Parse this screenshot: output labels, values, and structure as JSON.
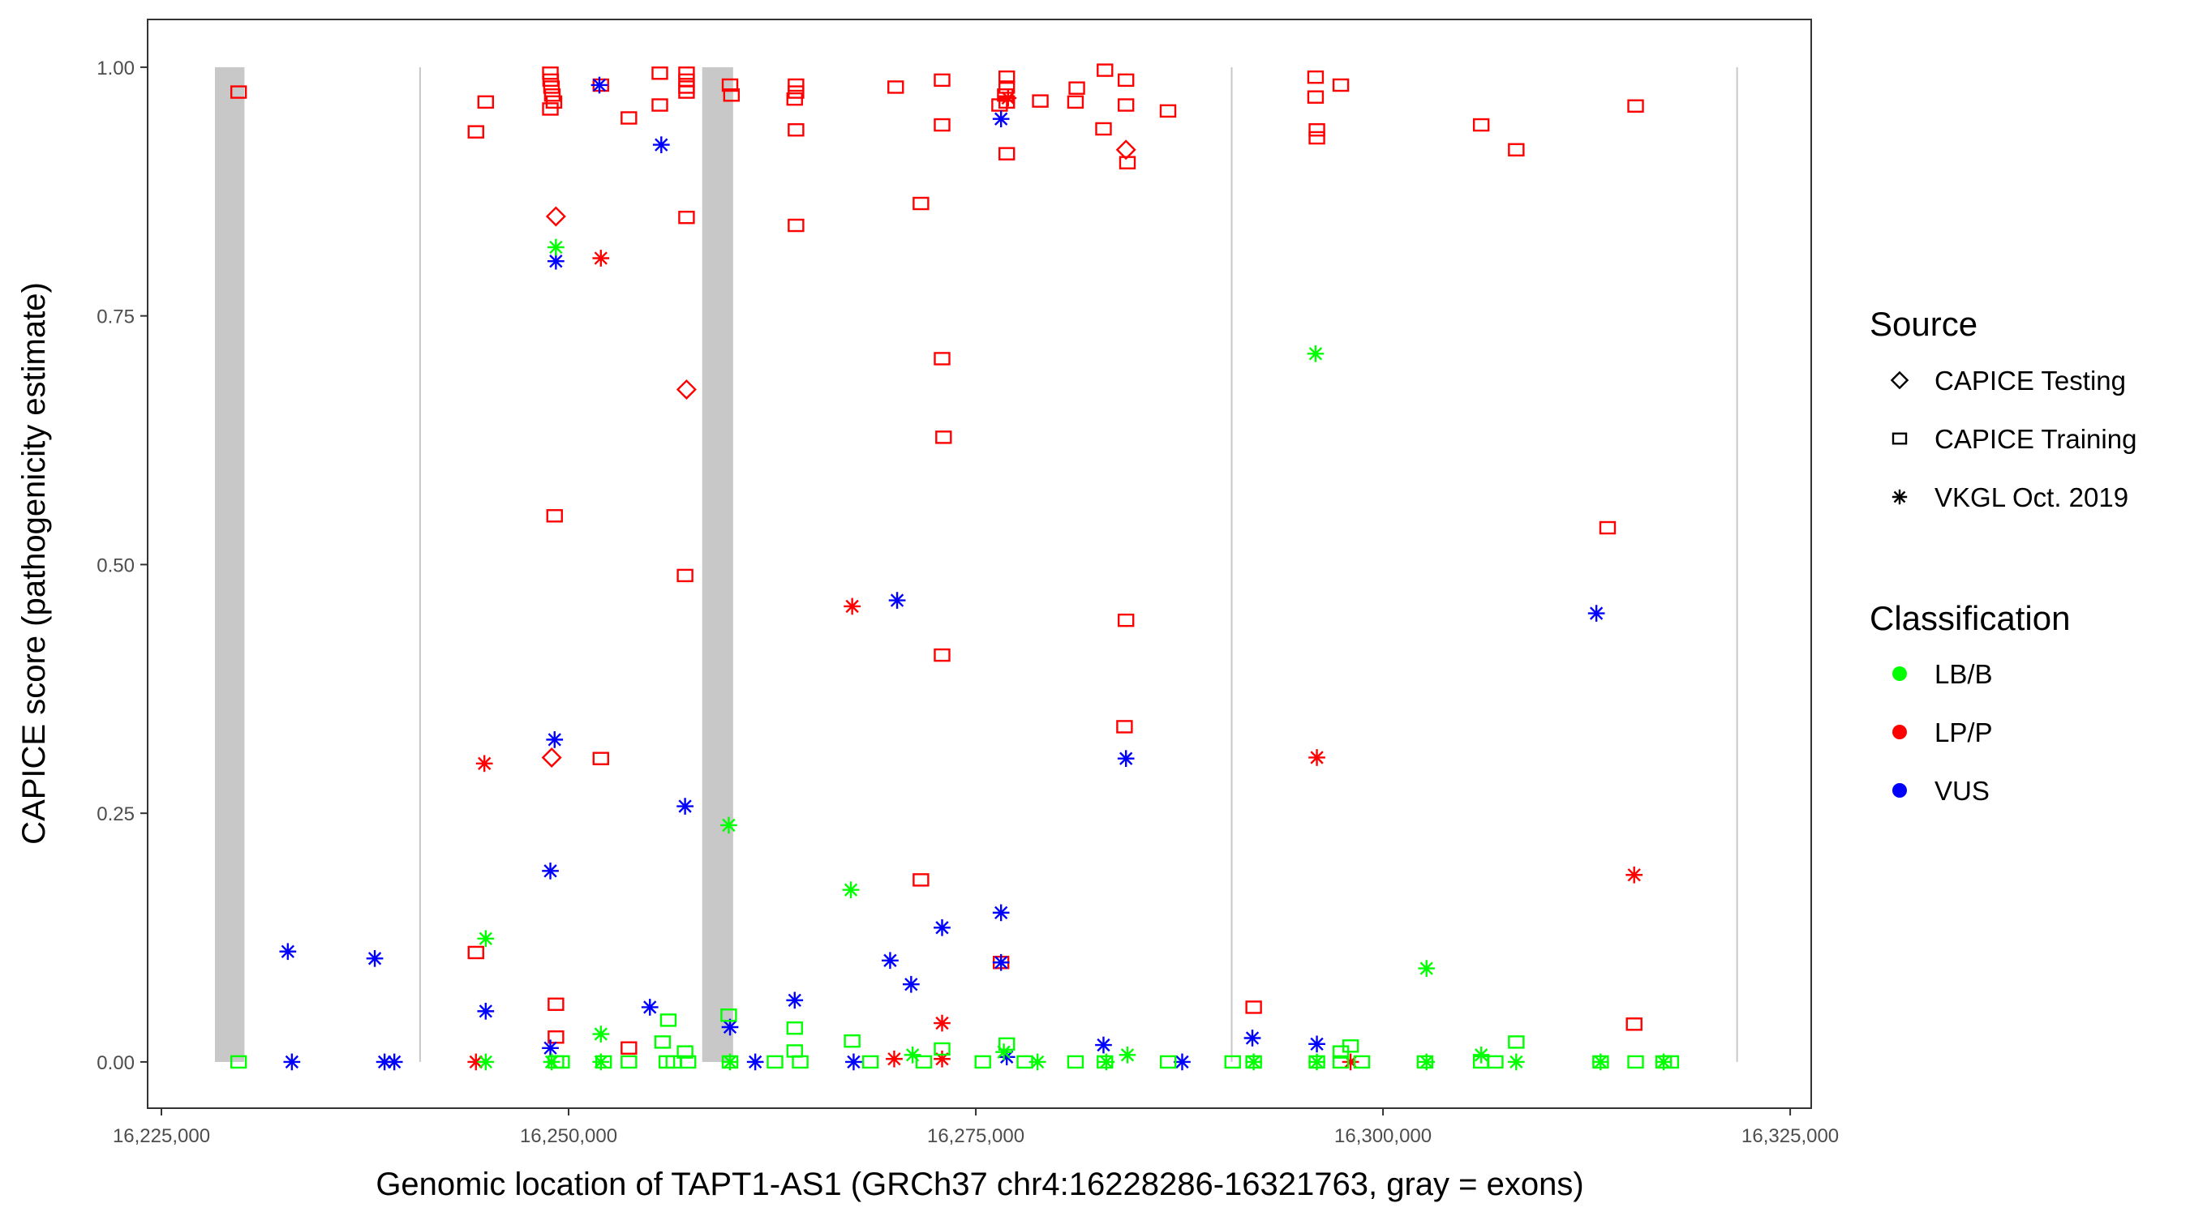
{
  "chart_data": {
    "type": "scatter",
    "title": "",
    "xlabel": "Genomic location of TAPT1-AS1 (GRCh37 chr4:16228286-16321763, gray = exons)",
    "ylabel": "CAPICE score (pathogenicity estimate)",
    "xlim": [
      16224153,
      16326290
    ],
    "ylim": [
      -0.0465,
      1.048
    ],
    "grid": false,
    "x_ticks": [
      16225000,
      16250000,
      16275000,
      16300000,
      16325000
    ],
    "x_tick_labels": [
      "16,225,000",
      "16,250,000",
      "16,275,000",
      "16,300,000",
      "16,325,000"
    ],
    "y_ticks": [
      0,
      0.25,
      0.5,
      0.75,
      1.0
    ],
    "y_tick_labels": [
      "0.00",
      "0.25",
      "0.50",
      "0.75",
      "1.00"
    ],
    "exons": [
      [
        16228286,
        16230100
      ],
      [
        16240830,
        16240900
      ],
      [
        16258200,
        16260100
      ],
      [
        16290660,
        16290730
      ],
      [
        16321690,
        16321763
      ]
    ],
    "exon_color": "#c8c8c8",
    "legend_placement": "right",
    "legend": {
      "source_title": "Source",
      "sources": [
        {
          "label": "CAPICE Testing",
          "shape": "diamond"
        },
        {
          "label": "CAPICE Training",
          "shape": "square"
        },
        {
          "label": "VKGL Oct. 2019",
          "shape": "asterisk"
        }
      ],
      "class_title": "Classification",
      "classes": [
        {
          "label": "LB/B",
          "color": "#00FF00"
        },
        {
          "label": "LP/P",
          "color": "#FF0000"
        },
        {
          "label": "VUS",
          "color": "#0000FF"
        }
      ]
    },
    "columns": [
      "position",
      "score",
      "classification",
      "source"
    ],
    "points": [
      [
        16229740,
        0.975,
        "LP/P",
        "CAPICE Training"
      ],
      [
        16244310,
        0.935,
        "LP/P",
        "CAPICE Training"
      ],
      [
        16244910,
        0.965,
        "LP/P",
        "CAPICE Training"
      ],
      [
        16248880,
        0.994,
        "LP/P",
        "CAPICE Training"
      ],
      [
        16248900,
        0.987,
        "LP/P",
        "CAPICE Training"
      ],
      [
        16248950,
        0.98,
        "LP/P",
        "CAPICE Training"
      ],
      [
        16249000,
        0.972,
        "LP/P",
        "CAPICE Training"
      ],
      [
        16249100,
        0.965,
        "LP/P",
        "CAPICE Training"
      ],
      [
        16248880,
        0.958,
        "LP/P",
        "CAPICE Training"
      ],
      [
        16251980,
        0.982,
        "LP/P",
        "CAPICE Training"
      ],
      [
        16253700,
        0.949,
        "LP/P",
        "CAPICE Training"
      ],
      [
        16255600,
        0.994,
        "LP/P",
        "CAPICE Training"
      ],
      [
        16255600,
        0.962,
        "LP/P",
        "CAPICE Training"
      ],
      [
        16257240,
        0.994,
        "LP/P",
        "CAPICE Training"
      ],
      [
        16257240,
        0.987,
        "LP/P",
        "CAPICE Training"
      ],
      [
        16257240,
        0.98,
        "LP/P",
        "CAPICE Training"
      ],
      [
        16257240,
        0.975,
        "LP/P",
        "CAPICE Training"
      ],
      [
        16257240,
        0.849,
        "LP/P",
        "CAPICE Training"
      ],
      [
        16257150,
        0.489,
        "LP/P",
        "CAPICE Training"
      ],
      [
        16259910,
        0.982,
        "LP/P",
        "CAPICE Training"
      ],
      [
        16260000,
        0.972,
        "LP/P",
        "CAPICE Training"
      ],
      [
        16263960,
        0.982,
        "LP/P",
        "CAPICE Training"
      ],
      [
        16263960,
        0.975,
        "LP/P",
        "CAPICE Training"
      ],
      [
        16263880,
        0.968,
        "LP/P",
        "CAPICE Training"
      ],
      [
        16263960,
        0.937,
        "LP/P",
        "CAPICE Training"
      ],
      [
        16263960,
        0.841,
        "LP/P",
        "CAPICE Training"
      ],
      [
        16270080,
        0.98,
        "LP/P",
        "CAPICE Training"
      ],
      [
        16271630,
        0.863,
        "LP/P",
        "CAPICE Training"
      ],
      [
        16272930,
        0.987,
        "LP/P",
        "CAPICE Training"
      ],
      [
        16272930,
        0.942,
        "LP/P",
        "CAPICE Training"
      ],
      [
        16272930,
        0.707,
        "LP/P",
        "CAPICE Training"
      ],
      [
        16273020,
        0.628,
        "LP/P",
        "CAPICE Training"
      ],
      [
        16272930,
        0.409,
        "LP/P",
        "CAPICE Training"
      ],
      [
        16276900,
        0.99,
        "LP/P",
        "CAPICE Training"
      ],
      [
        16276900,
        0.98,
        "LP/P",
        "CAPICE Training"
      ],
      [
        16276810,
        0.972,
        "LP/P",
        "CAPICE Training"
      ],
      [
        16276900,
        0.965,
        "LP/P",
        "CAPICE Training"
      ],
      [
        16276460,
        0.962,
        "LP/P",
        "CAPICE Training"
      ],
      [
        16276900,
        0.913,
        "LP/P",
        "CAPICE Training"
      ],
      [
        16278960,
        0.966,
        "LP/P",
        "CAPICE Training"
      ],
      [
        16281200,
        0.979,
        "LP/P",
        "CAPICE Training"
      ],
      [
        16281120,
        0.965,
        "LP/P",
        "CAPICE Training"
      ],
      [
        16282930,
        0.997,
        "LP/P",
        "CAPICE Training"
      ],
      [
        16282840,
        0.938,
        "LP/P",
        "CAPICE Training"
      ],
      [
        16284220,
        0.987,
        "LP/P",
        "CAPICE Training"
      ],
      [
        16284220,
        0.962,
        "LP/P",
        "CAPICE Training"
      ],
      [
        16284310,
        0.904,
        "LP/P",
        "CAPICE Training"
      ],
      [
        16284220,
        0.444,
        "LP/P",
        "CAPICE Training"
      ],
      [
        16284130,
        0.337,
        "LP/P",
        "CAPICE Training"
      ],
      [
        16286800,
        0.956,
        "LP/P",
        "CAPICE Training"
      ],
      [
        16295860,
        0.99,
        "LP/P",
        "CAPICE Training"
      ],
      [
        16295860,
        0.97,
        "LP/P",
        "CAPICE Training"
      ],
      [
        16295940,
        0.937,
        "LP/P",
        "CAPICE Training"
      ],
      [
        16295940,
        0.929,
        "LP/P",
        "CAPICE Training"
      ],
      [
        16297410,
        0.982,
        "LP/P",
        "CAPICE Training"
      ],
      [
        16306030,
        0.942,
        "LP/P",
        "CAPICE Training"
      ],
      [
        16308180,
        0.917,
        "LP/P",
        "CAPICE Training"
      ],
      [
        16315510,
        0.961,
        "LP/P",
        "CAPICE Training"
      ],
      [
        16313790,
        0.537,
        "LP/P",
        "CAPICE Training"
      ],
      [
        16315420,
        0.038,
        "LP/P",
        "CAPICE Training"
      ],
      [
        16292060,
        0.055,
        "LP/P",
        "CAPICE Training"
      ],
      [
        16271630,
        0.183,
        "LP/P",
        "CAPICE Training"
      ],
      [
        16276550,
        0.1,
        "LP/P",
        "CAPICE Training"
      ],
      [
        16249140,
        0.549,
        "LP/P",
        "CAPICE Training"
      ],
      [
        16251980,
        0.305,
        "LP/P",
        "CAPICE Training"
      ],
      [
        16244310,
        0.11,
        "LP/P",
        "CAPICE Training"
      ],
      [
        16249220,
        0.058,
        "LP/P",
        "CAPICE Training"
      ],
      [
        16249220,
        0.025,
        "LP/P",
        "CAPICE Training"
      ],
      [
        16253700,
        0.014,
        "LP/P",
        "CAPICE Training"
      ],
      [
        16249220,
        0.85,
        "LP/P",
        "CAPICE Testing"
      ],
      [
        16257240,
        0.676,
        "LP/P",
        "CAPICE Testing"
      ],
      [
        16248960,
        0.306,
        "LP/P",
        "CAPICE Testing"
      ],
      [
        16284220,
        0.917,
        "LP/P",
        "CAPICE Testing"
      ],
      [
        16251980,
        0.808,
        "LP/P",
        "VKGL Oct. 2019"
      ],
      [
        16244830,
        0.3,
        "LP/P",
        "VKGL Oct. 2019"
      ],
      [
        16267410,
        0.458,
        "LP/P",
        "VKGL Oct. 2019"
      ],
      [
        16295940,
        0.306,
        "LP/P",
        "VKGL Oct. 2019"
      ],
      [
        16315420,
        0.188,
        "LP/P",
        "VKGL Oct. 2019"
      ],
      [
        16276980,
        0.969,
        "LP/P",
        "VKGL Oct. 2019"
      ],
      [
        16272930,
        0.039,
        "LP/P",
        "VKGL Oct. 2019"
      ],
      [
        16244310,
        0.0,
        "LP/P",
        "VKGL Oct. 2019"
      ],
      [
        16269990,
        0.003,
        "LP/P",
        "VKGL Oct. 2019"
      ],
      [
        16272930,
        0.003,
        "LP/P",
        "VKGL Oct. 2019"
      ],
      [
        16298010,
        0.0,
        "LP/P",
        "VKGL Oct. 2019"
      ],
      [
        16232760,
        0.111,
        "VUS",
        "VKGL Oct. 2019"
      ],
      [
        16238100,
        0.104,
        "VUS",
        "VKGL Oct. 2019"
      ],
      [
        16233010,
        0.0,
        "VUS",
        "VKGL Oct. 2019"
      ],
      [
        16238700,
        0.0,
        "VUS",
        "VKGL Oct. 2019"
      ],
      [
        16239300,
        0.0,
        "VUS",
        "VKGL Oct. 2019"
      ],
      [
        16251890,
        0.982,
        "VUS",
        "VKGL Oct. 2019"
      ],
      [
        16255690,
        0.922,
        "VUS",
        "VKGL Oct. 2019"
      ],
      [
        16249220,
        0.805,
        "VUS",
        "VKGL Oct. 2019"
      ],
      [
        16249140,
        0.324,
        "VUS",
        "VKGL Oct. 2019"
      ],
      [
        16248880,
        0.192,
        "VUS",
        "VKGL Oct. 2019"
      ],
      [
        16244910,
        0.051,
        "VUS",
        "VKGL Oct. 2019"
      ],
      [
        16248880,
        0.014,
        "VUS",
        "VKGL Oct. 2019"
      ],
      [
        16257150,
        0.257,
        "VUS",
        "VKGL Oct. 2019"
      ],
      [
        16254990,
        0.055,
        "VUS",
        "VKGL Oct. 2019"
      ],
      [
        16259910,
        0.035,
        "VUS",
        "VKGL Oct. 2019"
      ],
      [
        16261460,
        0.0,
        "VUS",
        "VKGL Oct. 2019"
      ],
      [
        16263880,
        0.062,
        "VUS",
        "VKGL Oct. 2019"
      ],
      [
        16270170,
        0.464,
        "VUS",
        "VKGL Oct. 2019"
      ],
      [
        16269740,
        0.102,
        "VUS",
        "VKGL Oct. 2019"
      ],
      [
        16271030,
        0.078,
        "VUS",
        "VKGL Oct. 2019"
      ],
      [
        16272930,
        0.135,
        "VUS",
        "VKGL Oct. 2019"
      ],
      [
        16276550,
        0.15,
        "VUS",
        "VKGL Oct. 2019"
      ],
      [
        16276550,
        0.948,
        "VUS",
        "VKGL Oct. 2019"
      ],
      [
        16276550,
        0.1,
        "VUS",
        "VKGL Oct. 2019"
      ],
      [
        16267500,
        0.0,
        "VUS",
        "VKGL Oct. 2019"
      ],
      [
        16276900,
        0.005,
        "VUS",
        "VKGL Oct. 2019"
      ],
      [
        16282840,
        0.017,
        "VUS",
        "VKGL Oct. 2019"
      ],
      [
        16284220,
        0.305,
        "VUS",
        "VKGL Oct. 2019"
      ],
      [
        16287670,
        0.0,
        "VUS",
        "VKGL Oct. 2019"
      ],
      [
        16291980,
        0.024,
        "VUS",
        "VKGL Oct. 2019"
      ],
      [
        16295940,
        0.018,
        "VUS",
        "VKGL Oct. 2019"
      ],
      [
        16313100,
        0.451,
        "VUS",
        "VKGL Oct. 2019"
      ],
      [
        16249220,
        0.819,
        "LB/B",
        "VKGL Oct. 2019"
      ],
      [
        16244910,
        0.124,
        "LB/B",
        "VKGL Oct. 2019"
      ],
      [
        16259830,
        0.238,
        "LB/B",
        "VKGL Oct. 2019"
      ],
      [
        16267330,
        0.173,
        "LB/B",
        "VKGL Oct. 2019"
      ],
      [
        16295860,
        0.712,
        "LB/B",
        "VKGL Oct. 2019"
      ],
      [
        16302670,
        0.094,
        "LB/B",
        "VKGL Oct. 2019"
      ],
      [
        16251980,
        0.028,
        "LB/B",
        "VKGL Oct. 2019"
      ],
      [
        16244910,
        0.0,
        "LB/B",
        "VKGL Oct. 2019"
      ],
      [
        16248960,
        0.0,
        "LB/B",
        "VKGL Oct. 2019"
      ],
      [
        16251980,
        0.0,
        "LB/B",
        "VKGL Oct. 2019"
      ],
      [
        16259910,
        0.0,
        "LB/B",
        "VKGL Oct. 2019"
      ],
      [
        16271120,
        0.007,
        "LB/B",
        "VKGL Oct. 2019"
      ],
      [
        16276720,
        0.01,
        "LB/B",
        "VKGL Oct. 2019"
      ],
      [
        16278790,
        0.0,
        "LB/B",
        "VKGL Oct. 2019"
      ],
      [
        16283010,
        0.0,
        "LB/B",
        "VKGL Oct. 2019"
      ],
      [
        16284310,
        0.007,
        "LB/B",
        "VKGL Oct. 2019"
      ],
      [
        16292060,
        0.0,
        "LB/B",
        "VKGL Oct. 2019"
      ],
      [
        16295940,
        0.0,
        "LB/B",
        "VKGL Oct. 2019"
      ],
      [
        16302670,
        0.0,
        "LB/B",
        "VKGL Oct. 2019"
      ],
      [
        16306030,
        0.007,
        "LB/B",
        "VKGL Oct. 2019"
      ],
      [
        16308180,
        0.0,
        "LB/B",
        "VKGL Oct. 2019"
      ],
      [
        16313360,
        0.0,
        "LB/B",
        "VKGL Oct. 2019"
      ],
      [
        16317230,
        0.0,
        "LB/B",
        "VKGL Oct. 2019"
      ],
      [
        16229740,
        0.0,
        "LB/B",
        "CAPICE Training"
      ],
      [
        16255770,
        0.02,
        "LB/B",
        "CAPICE Training"
      ],
      [
        16256120,
        0.042,
        "LB/B",
        "CAPICE Training"
      ],
      [
        16257150,
        0.01,
        "LB/B",
        "CAPICE Training"
      ],
      [
        16259830,
        0.047,
        "LB/B",
        "CAPICE Training"
      ],
      [
        16263880,
        0.034,
        "LB/B",
        "CAPICE Training"
      ],
      [
        16263880,
        0.011,
        "LB/B",
        "CAPICE Training"
      ],
      [
        16267410,
        0.021,
        "LB/B",
        "CAPICE Training"
      ],
      [
        16272930,
        0.013,
        "LB/B",
        "CAPICE Training"
      ],
      [
        16276900,
        0.018,
        "LB/B",
        "CAPICE Training"
      ],
      [
        16308180,
        0.02,
        "LB/B",
        "CAPICE Training"
      ],
      [
        16298010,
        0.016,
        "LB/B",
        "CAPICE Training"
      ],
      [
        16297410,
        0.01,
        "LB/B",
        "CAPICE Training"
      ],
      [
        16249220,
        0.0,
        "LB/B",
        "CAPICE Training"
      ],
      [
        16249570,
        0.0,
        "LB/B",
        "CAPICE Training"
      ],
      [
        16252150,
        0.0,
        "LB/B",
        "CAPICE Training"
      ],
      [
        16253700,
        0.0,
        "LB/B",
        "CAPICE Training"
      ],
      [
        16256030,
        0.0,
        "LB/B",
        "CAPICE Training"
      ],
      [
        16256460,
        0.0,
        "LB/B",
        "CAPICE Training"
      ],
      [
        16257330,
        0.0,
        "LB/B",
        "CAPICE Training"
      ],
      [
        16259910,
        0.0,
        "LB/B",
        "CAPICE Training"
      ],
      [
        16262670,
        0.0,
        "LB/B",
        "CAPICE Training"
      ],
      [
        16264220,
        0.0,
        "LB/B",
        "CAPICE Training"
      ],
      [
        16268530,
        0.0,
        "LB/B",
        "CAPICE Training"
      ],
      [
        16271810,
        0.0,
        "LB/B",
        "CAPICE Training"
      ],
      [
        16275430,
        0.0,
        "LB/B",
        "CAPICE Training"
      ],
      [
        16278010,
        0.0,
        "LB/B",
        "CAPICE Training"
      ],
      [
        16281120,
        0.0,
        "LB/B",
        "CAPICE Training"
      ],
      [
        16282930,
        0.0,
        "LB/B",
        "CAPICE Training"
      ],
      [
        16286810,
        0.0,
        "LB/B",
        "CAPICE Training"
      ],
      [
        16290770,
        0.0,
        "LB/B",
        "CAPICE Training"
      ],
      [
        16292060,
        0.0,
        "LB/B",
        "CAPICE Training"
      ],
      [
        16295940,
        0.0,
        "LB/B",
        "CAPICE Training"
      ],
      [
        16297410,
        0.0,
        "LB/B",
        "CAPICE Training"
      ],
      [
        16298700,
        0.0,
        "LB/B",
        "CAPICE Training"
      ],
      [
        16302580,
        0.0,
        "LB/B",
        "CAPICE Training"
      ],
      [
        16306030,
        0.0,
        "LB/B",
        "CAPICE Training"
      ],
      [
        16306890,
        0.0,
        "LB/B",
        "CAPICE Training"
      ],
      [
        16313360,
        0.0,
        "LB/B",
        "CAPICE Training"
      ],
      [
        16315510,
        0.0,
        "LB/B",
        "CAPICE Training"
      ],
      [
        16317230,
        0.0,
        "LB/B",
        "CAPICE Training"
      ],
      [
        16317670,
        0.0,
        "LB/B",
        "CAPICE Training"
      ]
    ]
  }
}
